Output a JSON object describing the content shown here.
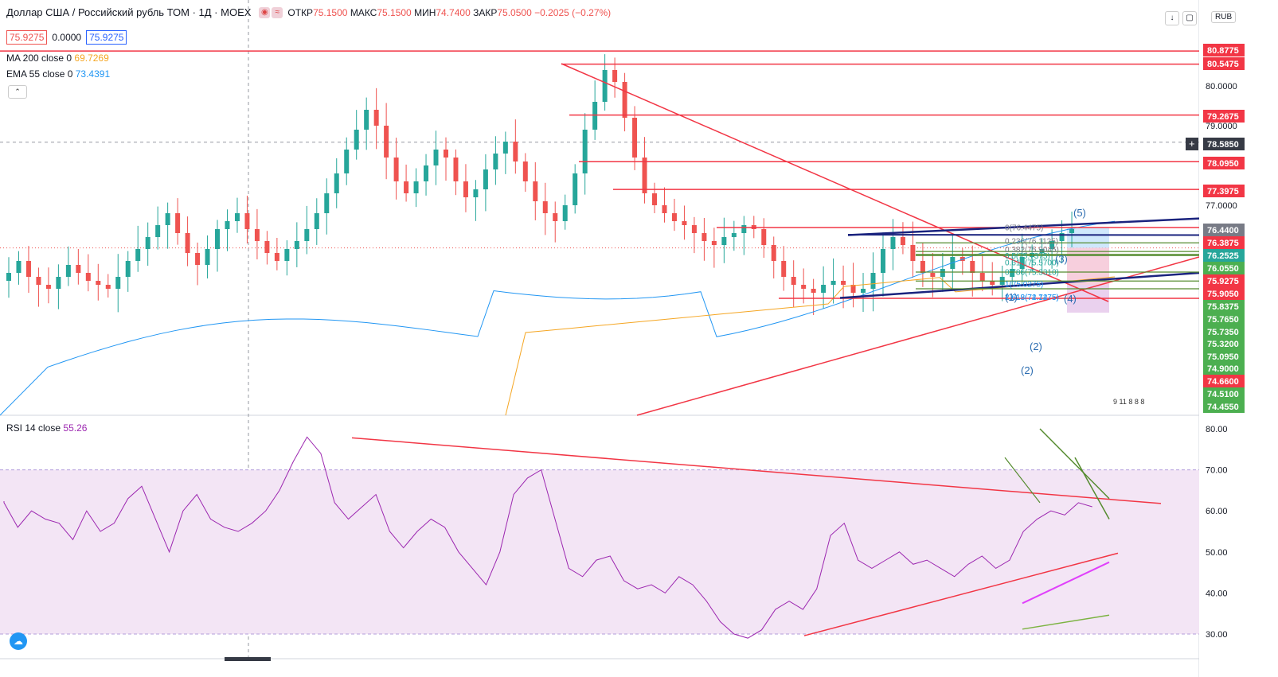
{
  "header": {
    "symbol": "Доллар США / Российский рубль ТОМ · 1Д · MOEX",
    "open_label": "ОТКР",
    "open": "75.1500",
    "high_label": "МАКС",
    "high": "75.1500",
    "low_label": "МИН",
    "low": "74.7400",
    "close_label": "ЗАКР",
    "close": "75.0500",
    "change": "−0.2025 (−0.27%)"
  },
  "order": {
    "sell": "75.9275",
    "spread": "0.0000",
    "buy": "75.9275"
  },
  "indicators": {
    "ma": {
      "label": "MA 200 close 0",
      "value": "69.7269"
    },
    "ema": {
      "label": "EMA 55 close 0",
      "value": "73.4391"
    },
    "rsi": {
      "label": "RSI 14 close",
      "value": "55.26"
    }
  },
  "currency": "RUB",
  "price_axis": {
    "ticks": [
      "80.0000",
      "79.0000",
      "77.0000"
    ],
    "labels": [
      {
        "text": "80.8775",
        "color": "#f23645"
      },
      {
        "text": "80.5475",
        "color": "#f23645"
      },
      {
        "text": "79.2675",
        "color": "#f23645"
      },
      {
        "text": "78.5850",
        "color": "#363a45"
      },
      {
        "text": "78.0950",
        "color": "#f23645"
      },
      {
        "text": "77.3975",
        "color": "#f23645"
      },
      {
        "text": "76.4400",
        "color": "#787b86"
      },
      {
        "text": "76.3875",
        "color": "#f23645"
      },
      {
        "text": "76.2525",
        "color": "#26a69a"
      },
      {
        "text": "76.0550",
        "color": "#4caf50"
      },
      {
        "text": "75.9275",
        "color": "#f23645"
      },
      {
        "text": "75.9050",
        "color": "#f23645"
      },
      {
        "text": "75.8375",
        "color": "#4caf50"
      },
      {
        "text": "75.7650",
        "color": "#4caf50"
      },
      {
        "text": "75.7350",
        "color": "#4caf50"
      },
      {
        "text": "75.3200",
        "color": "#4caf50"
      },
      {
        "text": "75.0950",
        "color": "#4caf50"
      },
      {
        "text": "74.9000",
        "color": "#4caf50"
      },
      {
        "text": "74.6600",
        "color": "#f23645"
      },
      {
        "text": "74.5100",
        "color": "#4caf50"
      },
      {
        "text": "74.4550",
        "color": "#4caf50"
      }
    ]
  },
  "rsi_axis": [
    "80.00",
    "70.00",
    "60.00",
    "50.00",
    "40.00",
    "30.00"
  ],
  "fib": {
    "levels": [
      "0(76.4475)",
      "0.236(76.1125)",
      "0.382(75.9045)",
      "0.5(75.7375)",
      "0.618(75.5700)",
      "0.786(75.3310)",
      "1(75.0275)",
      "1.618(74.1475)",
      "2.618(72.7275)"
    ]
  },
  "waves": [
    "(1)",
    "(2)",
    "(3)",
    "(4)",
    "(5)",
    "(2)"
  ],
  "counts": "9 11 8 8 8",
  "colors": {
    "up": "#26a69a",
    "down": "#ef5350",
    "ma": "#f5a623",
    "ema": "#2196f3",
    "rsi": "#9c27b0",
    "rsi_band": "#f3e5f5",
    "line_red": "#f23645",
    "line_navy": "#1a237e",
    "line_green": "#558b2f"
  },
  "icons": {
    "logo": "tradingview-logo-icon",
    "download": "download-arrow-icon",
    "reset": "reset-icon",
    "collapse": "chevron-up-icon"
  }
}
